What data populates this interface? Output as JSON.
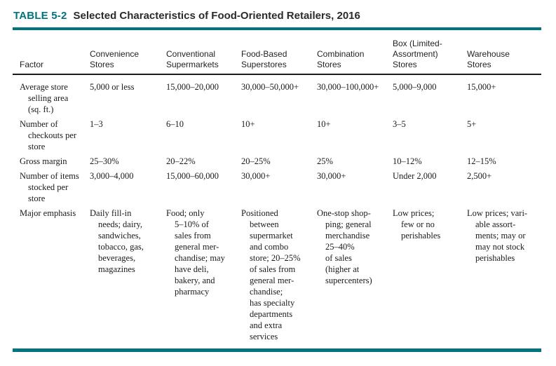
{
  "title": {
    "label": "TABLE 5-2",
    "text": "Selected Characteristics of Food-Oriented Retailers, 2016"
  },
  "colors": {
    "accent_teal": "#00747e",
    "text": "#231f20"
  },
  "table": {
    "headers": [
      "Factor",
      "Convenience\nStores",
      "Conventional\nSupermarkets",
      "Food-Based\nSuperstores",
      "Combination\nStores",
      "Box (Limited-\nAssortment)\nStores",
      "Warehouse\nStores"
    ],
    "rows": [
      {
        "factor": "Average store\nselling area\n(sq. ft.)",
        "cells": [
          "5,000 or less",
          "15,000–20,000",
          "30,000–50,000+",
          "30,000–100,000+",
          "5,000–9,000",
          "15,000+"
        ]
      },
      {
        "factor": "Number of\ncheckouts per\nstore",
        "cells": [
          "1–3",
          "6–10",
          "10+",
          "10+",
          "3–5",
          "5+"
        ]
      },
      {
        "factor": "Gross margin",
        "cells": [
          "25–30%",
          "20–22%",
          "20–25%",
          "25%",
          "10–12%",
          "12–15%"
        ]
      },
      {
        "factor": "Number of items\nstocked per\nstore",
        "cells": [
          "3,000–4,000",
          "15,000–60,000",
          "30,000+",
          "30,000+",
          "Under 2,000",
          "2,500+"
        ]
      },
      {
        "factor": "Major emphasis",
        "cells": [
          "Daily fill-in\nneeds; dairy,\nsandwiches,\ntobacco, gas,\nbeverages,\nmagazines",
          "Food; only\n5–10% of\nsales from\ngeneral mer-\nchandise; may\nhave deli,\nbakery, and\npharmacy",
          "Positioned\nbetween\nsupermarket\nand combo\nstore; 20–25%\nof sales from\ngeneral mer-\nchandise;\nhas specialty\ndepartments\nand extra\nservices",
          "One-stop shop-\nping; general\nmerchandise\n25–40%\nof sales\n(higher at\nsupercenters)",
          "Low prices;\nfew or no\nperishables",
          "Low prices; vari-\nable assort-\nments; may or\nmay not stock\nperishables"
        ]
      }
    ]
  }
}
